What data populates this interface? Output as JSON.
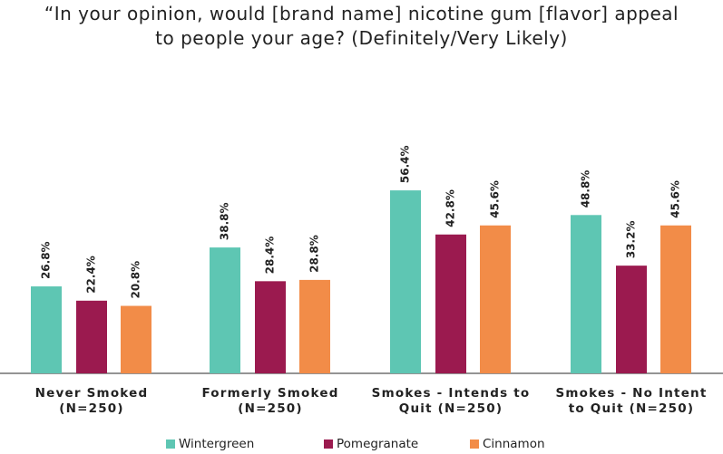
{
  "chart_data": {
    "type": "bar",
    "title": "“In your opinion, would [brand name] nicotine gum [flavor] appeal to people your age? (Definitely/Very Likely)",
    "categories": [
      "Never Smoked (N=250)",
      "Formerly Smoked (N=250)",
      "Smokes - Intends to Quit (N=250)",
      "Smokes - No Intent to Quit (N=250)"
    ],
    "series": [
      {
        "name": "Wintergreen",
        "color": "#5ec6b3",
        "values": [
          26.8,
          38.8,
          56.4,
          48.8
        ],
        "value_labels": [
          "26.8%",
          "38.8%",
          "56.4%",
          "48.8%"
        ]
      },
      {
        "name": "Pomegranate",
        "color": "#9b1a4f",
        "values": [
          22.4,
          28.4,
          42.8,
          33.2
        ],
        "value_labels": [
          "22.4%",
          "28.4%",
          "42.8%",
          "33.2%"
        ]
      },
      {
        "name": "Cinnamon",
        "color": "#f28c48",
        "values": [
          20.8,
          28.8,
          45.6,
          45.6
        ],
        "value_labels": [
          "20.8%",
          "28.8%",
          "45.6%",
          "45.6%"
        ]
      }
    ],
    "legend": "bottom"
  }
}
